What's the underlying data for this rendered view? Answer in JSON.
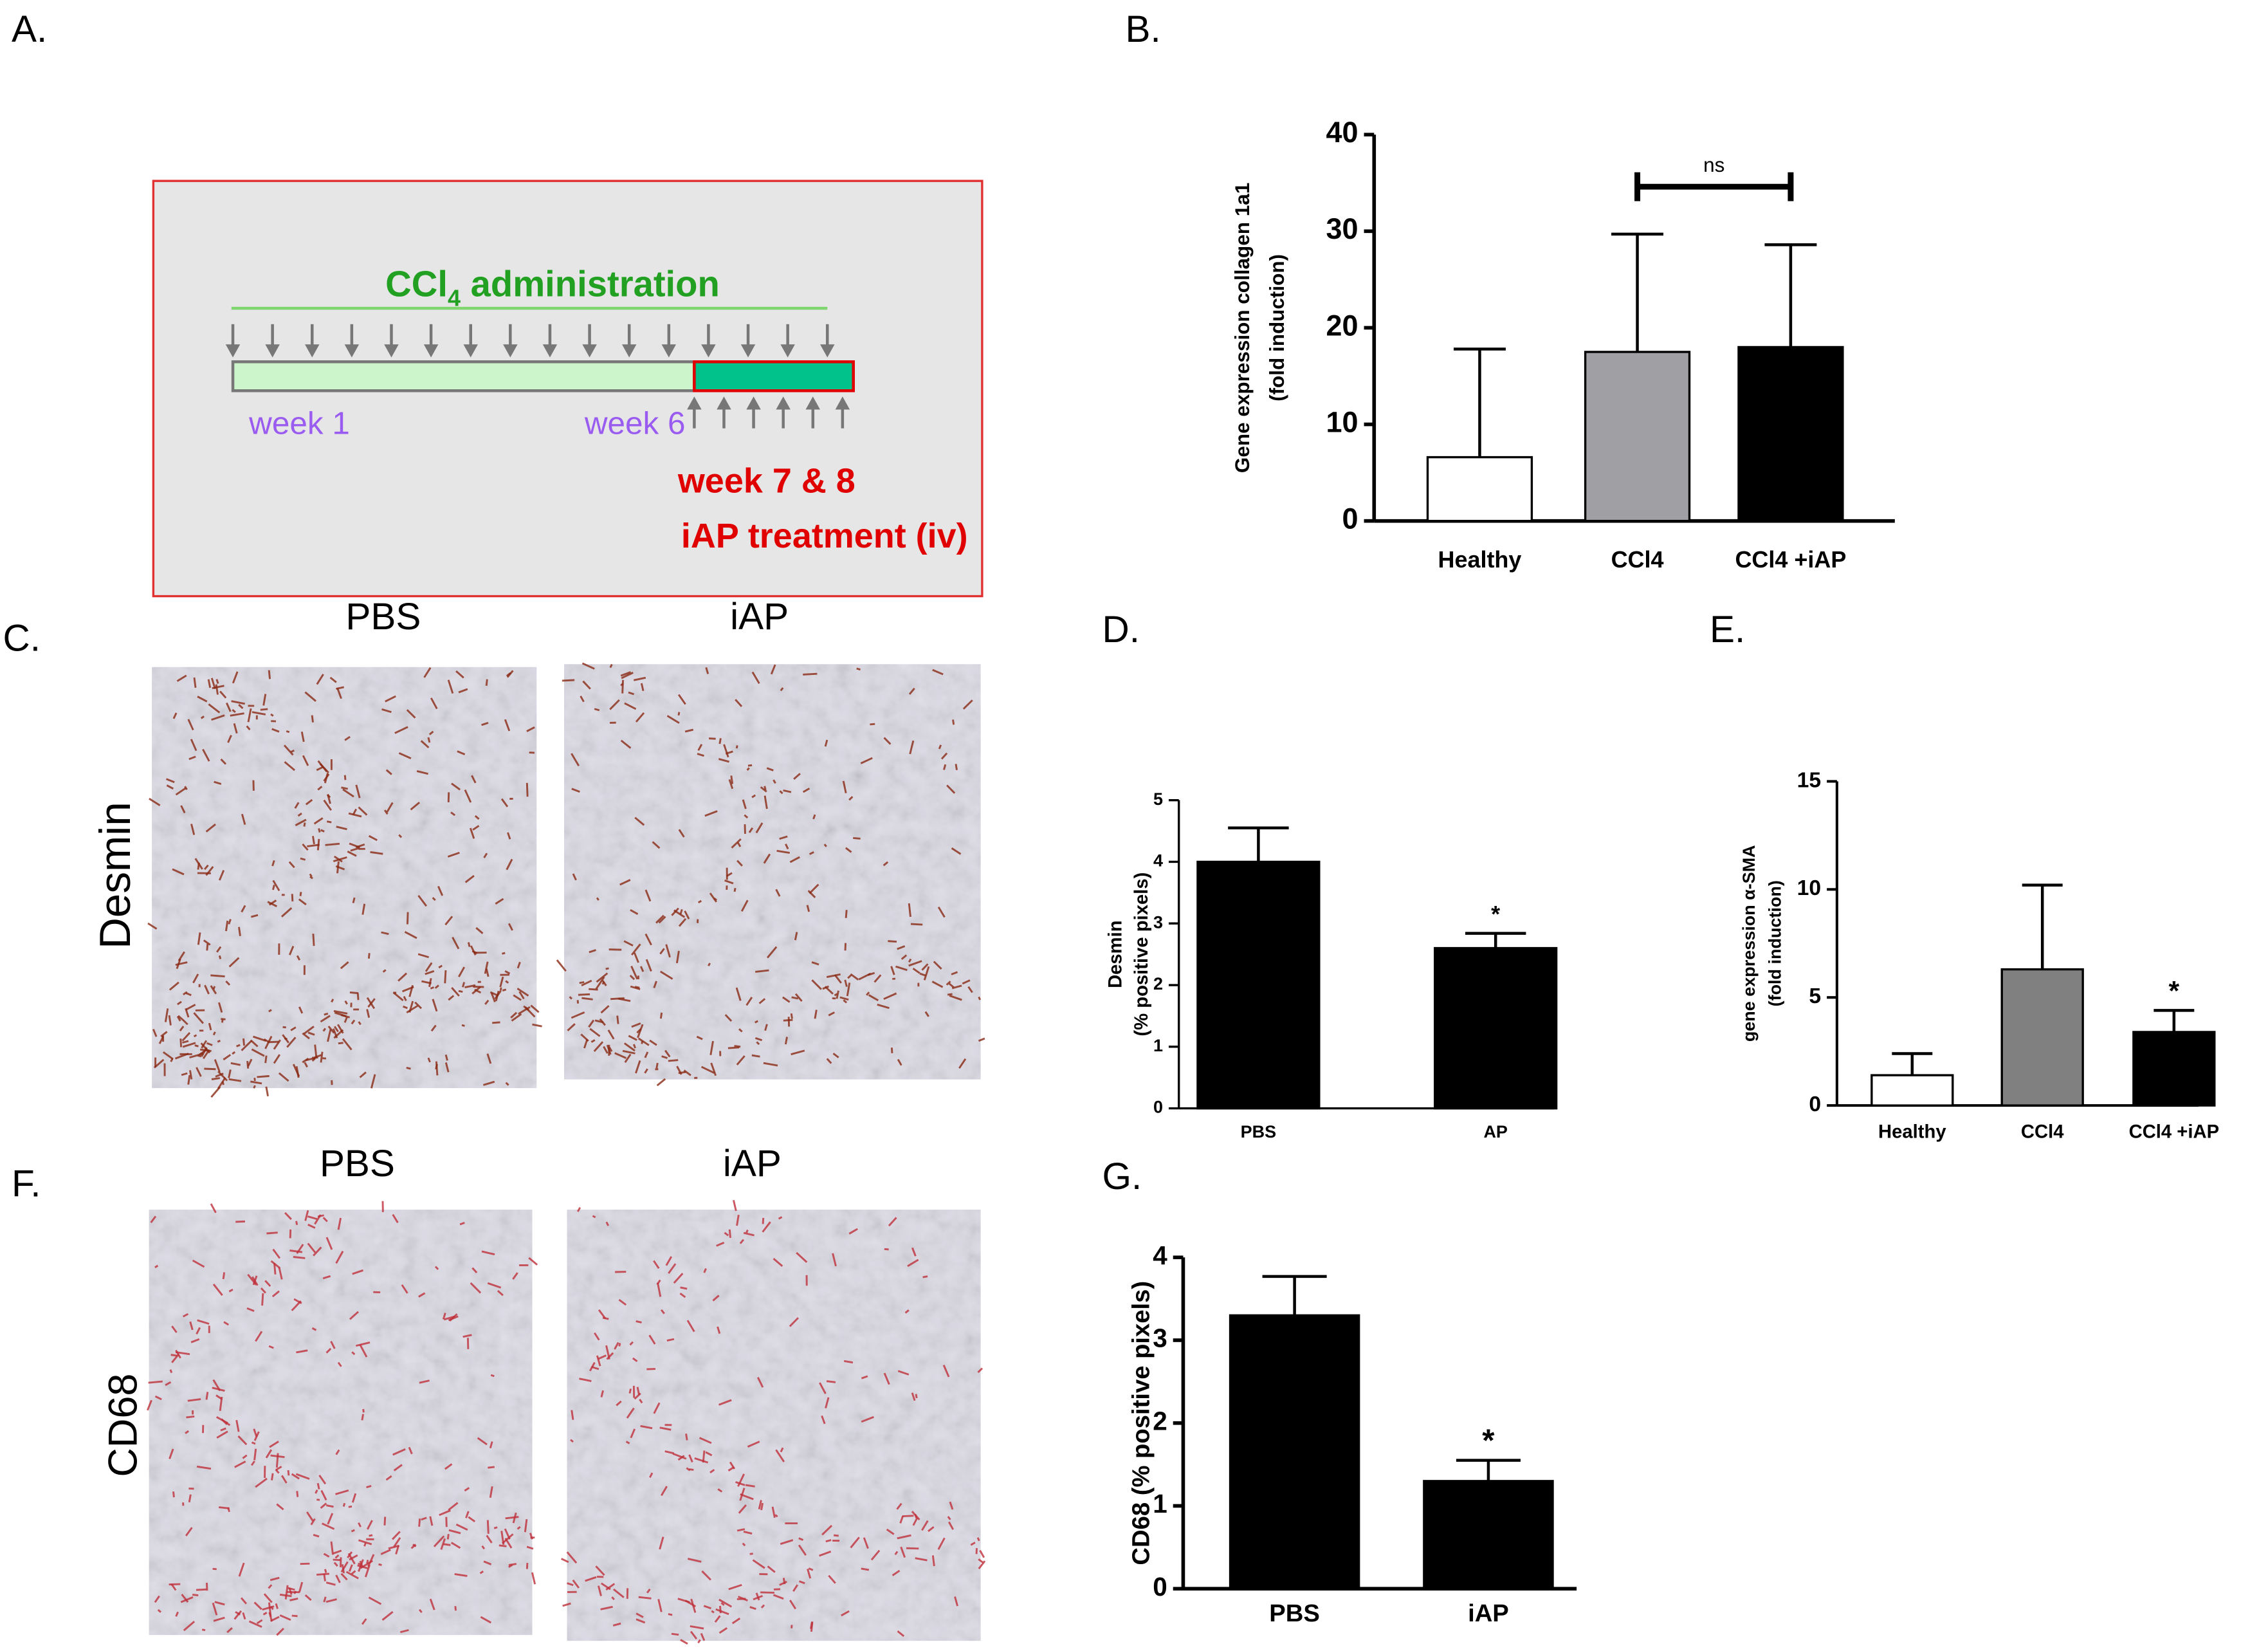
{
  "panel_labels": [
    "A.",
    "B.",
    "C.",
    "D.",
    "E.",
    "F.",
    "G."
  ],
  "timeline": {
    "label_parts": [
      "CCl",
      "4",
      " administration"
    ],
    "start_label": "week 1",
    "mid_label": "week 6",
    "treatment_lines": [
      "week 7 & 8",
      "iAP treatment (iv)"
    ]
  },
  "micrographs": {
    "columns": [
      "PBS",
      "iAP"
    ],
    "rows": [
      "Desmin",
      "CD68"
    ]
  },
  "chart_data": [
    {
      "type": "bar",
      "categories": [
        "Healthy",
        "CCl4",
        "CCl4 +iAP"
      ],
      "values": [
        6.6,
        17.5,
        18
      ],
      "errors": [
        11.2,
        12.2,
        10.6
      ],
      "colors": [
        "#ffffff",
        "#a0a0a4",
        "#000000"
      ],
      "ylabel": [
        "Gene expression collagen 1a1",
        "(fold induction)"
      ],
      "ylim": [
        0,
        40
      ],
      "yticks": [
        0,
        10,
        20,
        30,
        40
      ],
      "bracket": {
        "label": "ns",
        "from": "CCl4",
        "to": "CCl4 +iAP"
      }
    },
    {
      "type": "bar",
      "categories": [
        "PBS",
        "AP"
      ],
      "values": [
        4.0,
        2.6
      ],
      "errors": [
        0.55,
        0.24
      ],
      "colors": [
        "#000000",
        "#000000"
      ],
      "ylabel": [
        "Desmin",
        "(% positive pixels)"
      ],
      "ylim": [
        0,
        5
      ],
      "yticks": [
        0,
        1,
        2,
        3,
        4,
        5
      ],
      "significance": [
        null,
        "*"
      ]
    },
    {
      "type": "bar",
      "categories": [
        "Healthy",
        "CCl4",
        "CCl4 +iAP"
      ],
      "values": [
        1.4,
        6.3,
        3.4
      ],
      "errors": [
        1.0,
        3.9,
        1.0
      ],
      "colors": [
        "#ffffff",
        "#808080",
        "#000000"
      ],
      "ylabel": [
        "gene expression α-SMA",
        "(fold induction)"
      ],
      "ylim": [
        0,
        15
      ],
      "yticks": [
        0,
        5,
        10,
        15
      ],
      "significance": [
        null,
        null,
        "*"
      ]
    },
    {
      "type": "bar",
      "categories": [
        "PBS",
        "iAP"
      ],
      "values": [
        3.3,
        1.3
      ],
      "errors": [
        0.47,
        0.25
      ],
      "colors": [
        "#000000",
        "#000000"
      ],
      "ylabel": [
        "CD68 (% positive pixels)"
      ],
      "ylim": [
        0,
        4
      ],
      "yticks": [
        0,
        1,
        2,
        3,
        4
      ],
      "significance": [
        null,
        "*"
      ]
    }
  ]
}
